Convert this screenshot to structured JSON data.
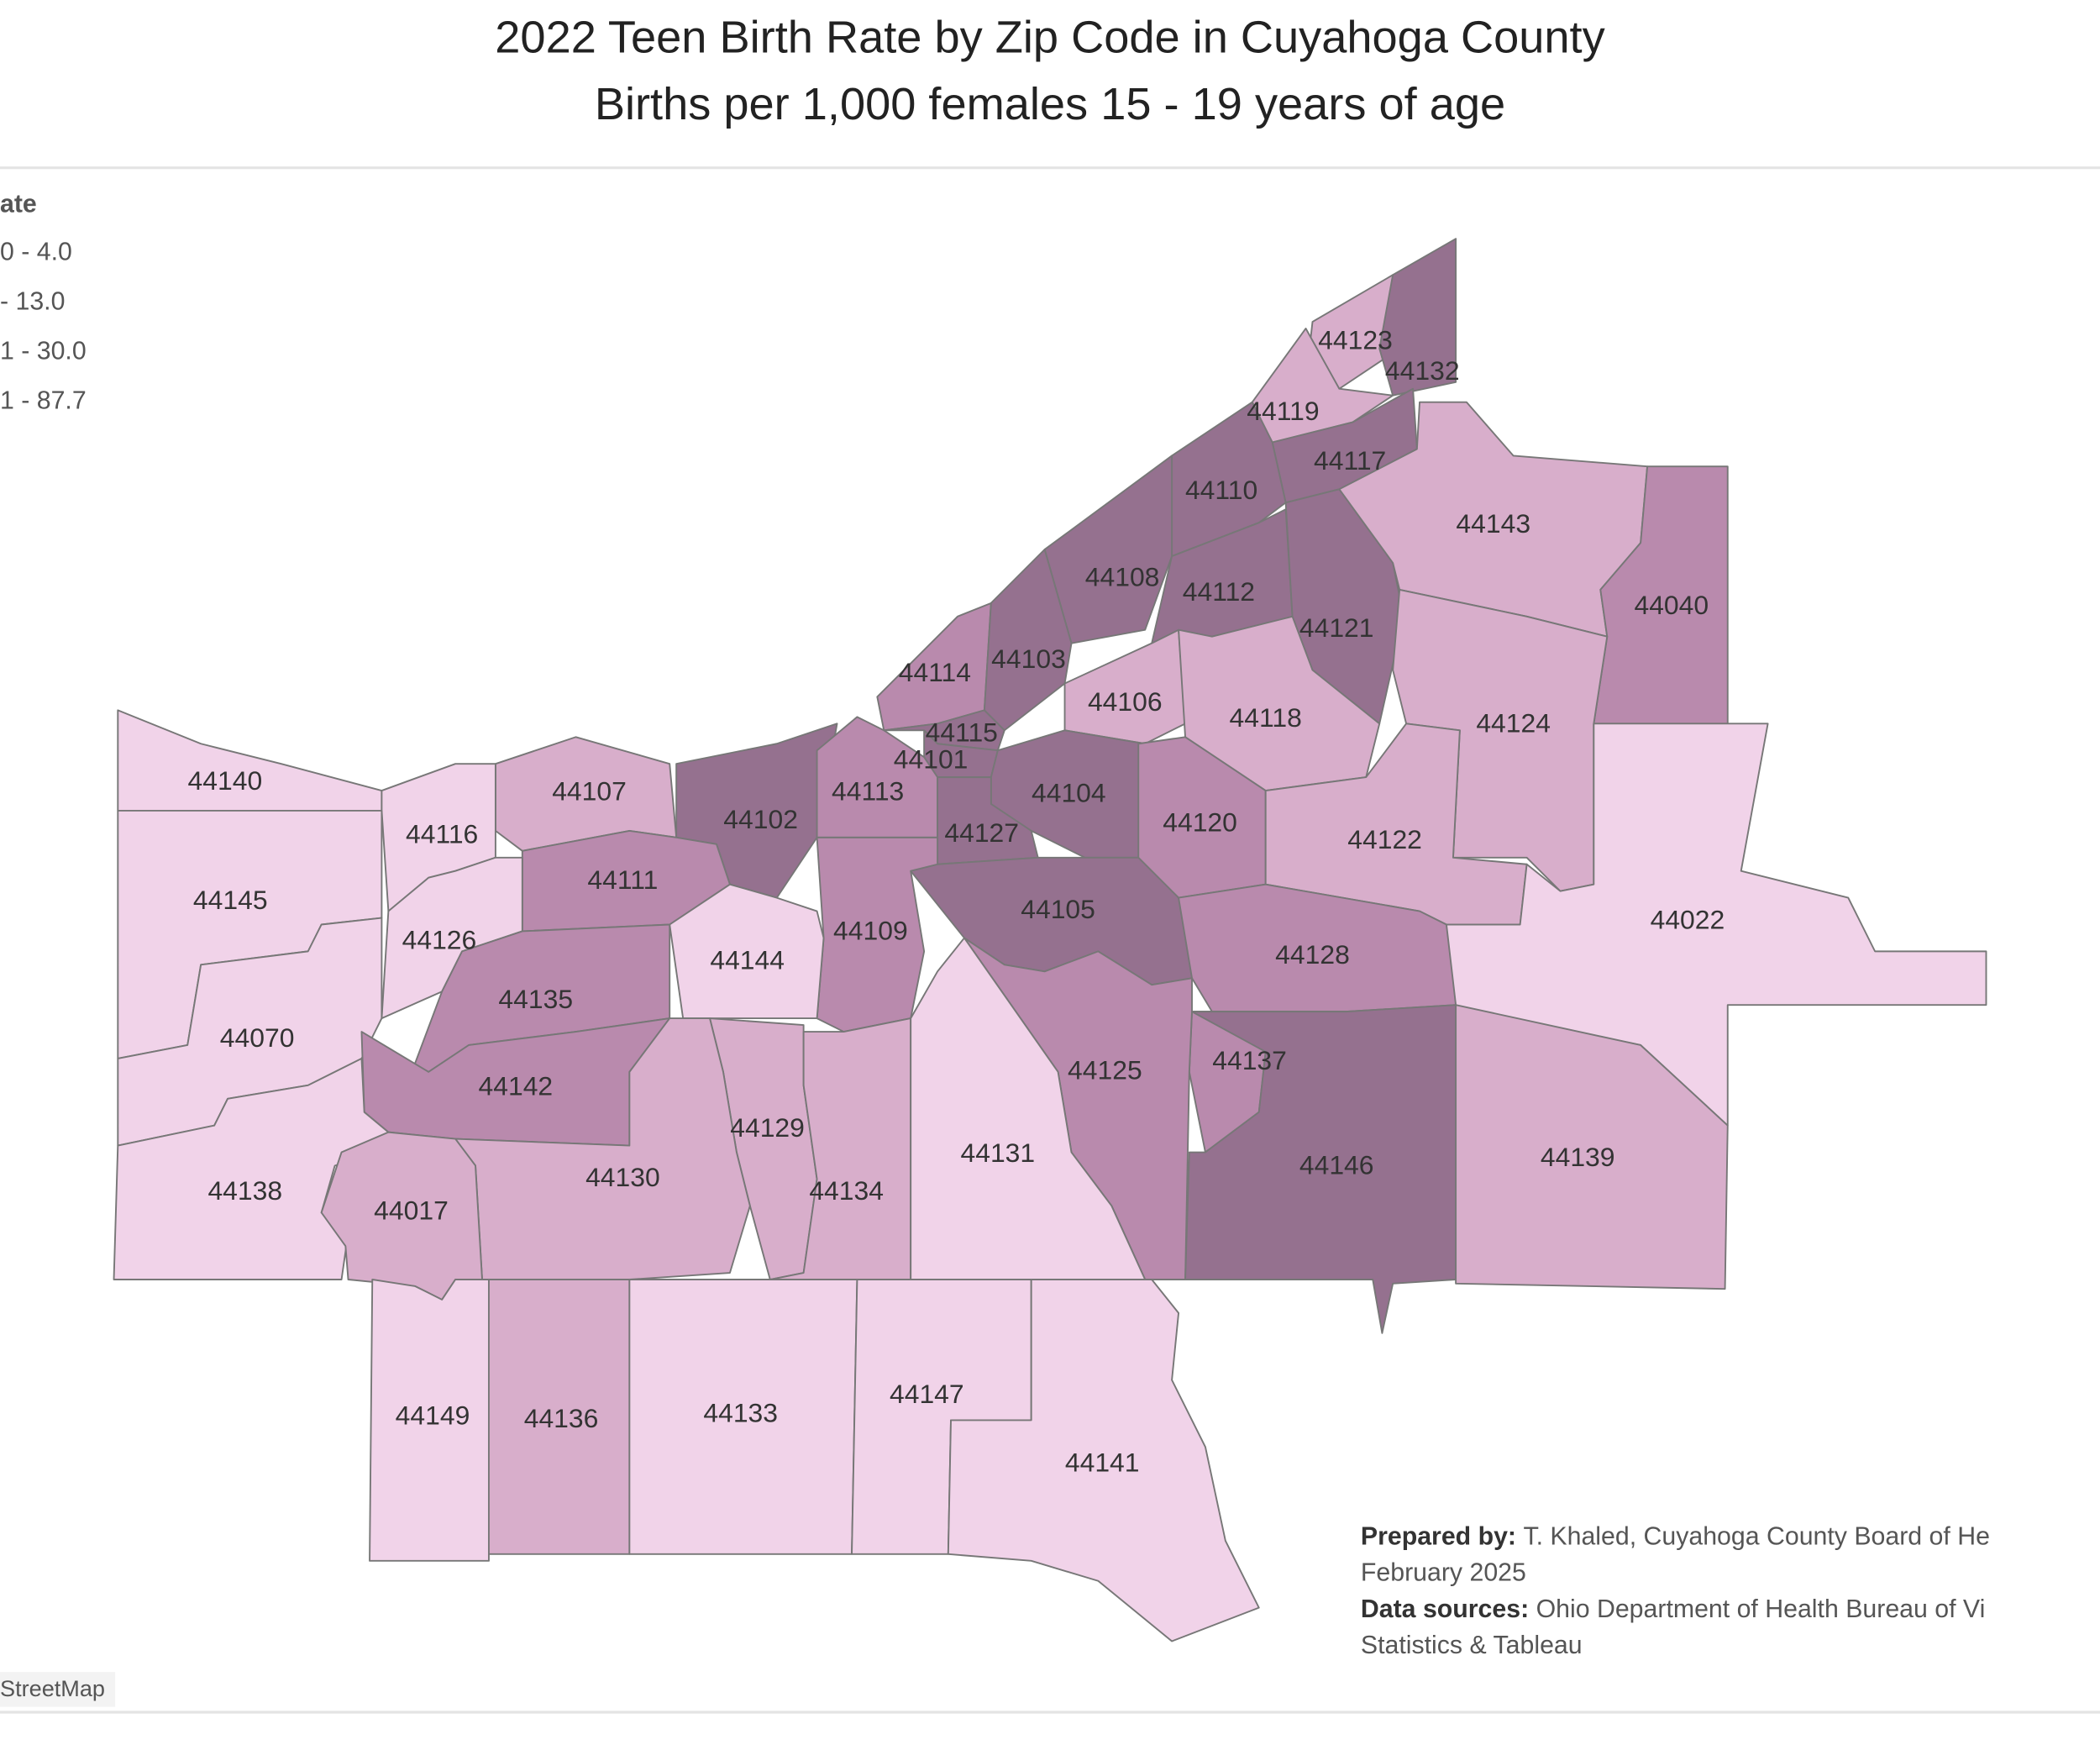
{
  "header": {
    "title": "2022 Teen Birth Rate by Zip Code in Cuyahoga County",
    "subtitle": "Births per 1,000 females 15 - 19 years of age"
  },
  "legend": {
    "title": "ate",
    "items": [
      "0 - 4.0",
      "- 13.0",
      "1 - 30.0",
      "1 - 87.7"
    ]
  },
  "regions": [
    {
      "zip": "44123",
      "color": "#d8aecb"
    },
    {
      "zip": "44132",
      "color": "#95718f"
    },
    {
      "zip": "44119",
      "color": "#d8aecb"
    },
    {
      "zip": "44117",
      "color": "#95718f"
    },
    {
      "zip": "44110",
      "color": "#95718f"
    },
    {
      "zip": "44108",
      "color": "#95718f"
    },
    {
      "zip": "44112",
      "color": "#95718f"
    },
    {
      "zip": "44121",
      "color": "#95718f"
    },
    {
      "zip": "44143",
      "color": "#d8aecb"
    },
    {
      "zip": "44040",
      "color": "#b98aad"
    },
    {
      "zip": "44114",
      "color": "#b98aad"
    },
    {
      "zip": "44103",
      "color": "#95718f"
    },
    {
      "zip": "44106",
      "color": "#d8aecb"
    },
    {
      "zip": "44118",
      "color": "#d8aecb"
    },
    {
      "zip": "44124",
      "color": "#d8aecb"
    },
    {
      "zip": "44115",
      "color": "#95718f"
    },
    {
      "zip": "44101",
      "color": "#95718f"
    },
    {
      "zip": "44104",
      "color": "#95718f"
    },
    {
      "zip": "44120",
      "color": "#b98aad"
    },
    {
      "zip": "44122",
      "color": "#d8aecb"
    },
    {
      "zip": "44022",
      "color": "#f1d3e9"
    },
    {
      "zip": "44107",
      "color": "#d8aecb"
    },
    {
      "zip": "44102",
      "color": "#95718f"
    },
    {
      "zip": "44113",
      "color": "#b98aad"
    },
    {
      "zip": "44127",
      "color": "#95718f"
    },
    {
      "zip": "44140",
      "color": "#f1d3e9"
    },
    {
      "zip": "44116",
      "color": "#f1d3e9"
    },
    {
      "zip": "44145",
      "color": "#f1d3e9"
    },
    {
      "zip": "44111",
      "color": "#b98aad"
    },
    {
      "zip": "44126",
      "color": "#f1d3e9"
    },
    {
      "zip": "44070",
      "color": "#f1d3e9"
    },
    {
      "zip": "44105",
      "color": "#95718f"
    },
    {
      "zip": "44109",
      "color": "#b98aad"
    },
    {
      "zip": "44144",
      "color": "#f1d3e9"
    },
    {
      "zip": "44135",
      "color": "#b98aad"
    },
    {
      "zip": "44128",
      "color": "#b98aad"
    },
    {
      "zip": "44142",
      "color": "#b98aad"
    },
    {
      "zip": "44137",
      "color": "#b98aad"
    },
    {
      "zip": "44125",
      "color": "#b98aad"
    },
    {
      "zip": "44129",
      "color": "#d8aecb"
    },
    {
      "zip": "44134",
      "color": "#d8aecb"
    },
    {
      "zip": "44131",
      "color": "#f1d3e9"
    },
    {
      "zip": "44146",
      "color": "#95718f"
    },
    {
      "zip": "44139",
      "color": "#d8aecb"
    },
    {
      "zip": "44130",
      "color": "#d8aecb"
    },
    {
      "zip": "44138",
      "color": "#f1d3e9"
    },
    {
      "zip": "44017",
      "color": "#d8aecb"
    },
    {
      "zip": "44149",
      "color": "#f1d3e9"
    },
    {
      "zip": "44136",
      "color": "#d8aecb"
    },
    {
      "zip": "44133",
      "color": "#f1d3e9"
    },
    {
      "zip": "44147",
      "color": "#f1d3e9"
    },
    {
      "zip": "44141",
      "color": "#f1d3e9"
    }
  ],
  "footnote": {
    "prepared_label": "Prepared by:",
    "prepared_text": "T. Khaled, Cuyahoga County Board of He",
    "date": "February 2025",
    "sources_label": "Data sources:",
    "sources_text": "Ohio Department of Health Bureau of Vi",
    "sources_text2": "Statistics & Tableau"
  },
  "attribution": "StreetMap"
}
